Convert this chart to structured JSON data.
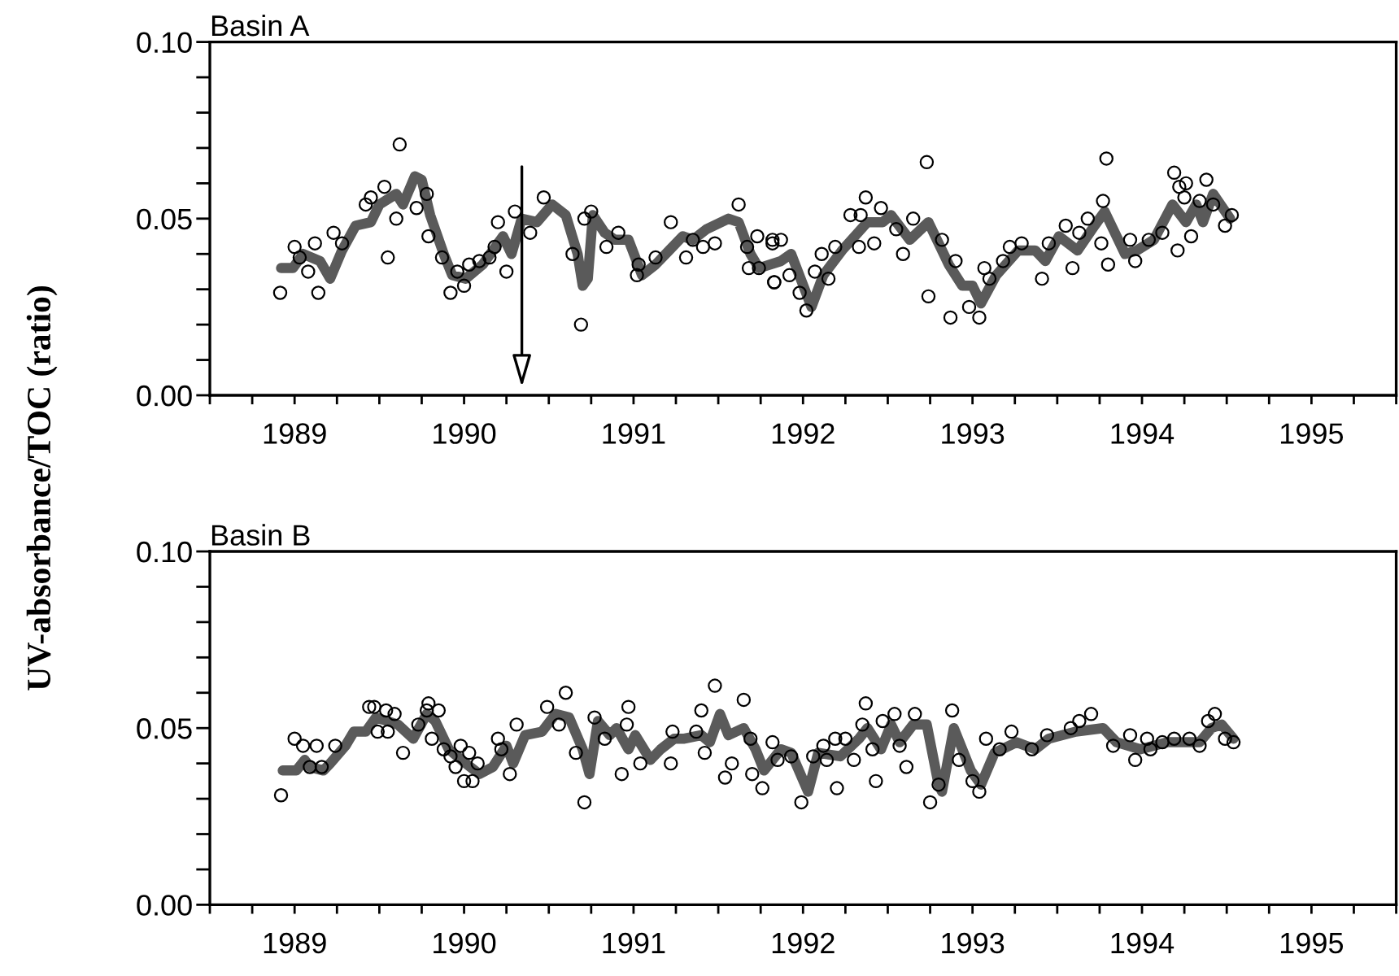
{
  "chart_data": [
    {
      "type": "scatter",
      "title": "Basin A",
      "ylabel": "UV-absorbance/TOC (ratio)",
      "xlim": [
        1989,
        1996
      ],
      "ylim": [
        0,
        0.1
      ],
      "xticks": [
        {
          "value": 1989,
          "label": null
        },
        {
          "value": 1989.25,
          "label": null
        },
        {
          "value": 1989.5,
          "label": "1989"
        },
        {
          "value": 1989.75,
          "label": null
        },
        {
          "value": 1990,
          "label": null
        },
        {
          "value": 1990.25,
          "label": null
        },
        {
          "value": 1990.5,
          "label": "1990"
        },
        {
          "value": 1990.75,
          "label": null
        },
        {
          "value": 1991,
          "label": null
        },
        {
          "value": 1991.25,
          "label": null
        },
        {
          "value": 1991.5,
          "label": "1991"
        },
        {
          "value": 1991.75,
          "label": null
        },
        {
          "value": 1992,
          "label": null
        },
        {
          "value": 1992.25,
          "label": null
        },
        {
          "value": 1992.5,
          "label": "1992"
        },
        {
          "value": 1992.75,
          "label": null
        },
        {
          "value": 1993,
          "label": null
        },
        {
          "value": 1993.25,
          "label": null
        },
        {
          "value": 1993.5,
          "label": "1993"
        },
        {
          "value": 1993.75,
          "label": null
        },
        {
          "value": 1994,
          "label": null
        },
        {
          "value": 1994.25,
          "label": null
        },
        {
          "value": 1994.5,
          "label": "1994"
        },
        {
          "value": 1994.75,
          "label": null
        },
        {
          "value": 1995,
          "label": null
        },
        {
          "value": 1995.25,
          "label": null
        },
        {
          "value": 1995.5,
          "label": "1995"
        },
        {
          "value": 1995.75,
          "label": null
        },
        {
          "value": 1996,
          "label": null
        }
      ],
      "yticks": [
        {
          "value": 0,
          "label": "0.00"
        },
        {
          "value": 0.01,
          "label": null
        },
        {
          "value": 0.02,
          "label": null
        },
        {
          "value": 0.03,
          "label": null
        },
        {
          "value": 0.04,
          "label": null
        },
        {
          "value": 0.05,
          "label": "0.05"
        },
        {
          "value": 0.06,
          "label": null
        },
        {
          "value": 0.07,
          "label": null
        },
        {
          "value": 0.08,
          "label": null
        },
        {
          "value": 0.09,
          "label": null
        },
        {
          "value": 0.1,
          "label": "0.10"
        }
      ],
      "grid": false,
      "legend": false,
      "series": [
        {
          "type": "scatter",
          "marker": "circle",
          "color": "#000000",
          "x": [
            1989.415,
            1989.5,
            1989.53,
            1989.58,
            1989.62,
            1989.64,
            1989.73,
            1989.78,
            1989.92,
            1989.95,
            1990.03,
            1990.05,
            1990.1,
            1990.12,
            1990.22,
            1990.28,
            1990.29,
            1990.37,
            1990.42,
            1990.46,
            1990.5,
            1990.53,
            1990.59,
            1990.65,
            1990.68,
            1990.7,
            1990.75,
            1990.8,
            1990.89,
            1990.97,
            1991.14,
            1991.19,
            1991.21,
            1991.25,
            1991.34,
            1991.41,
            1991.52,
            1991.53,
            1991.63,
            1991.72,
            1991.81,
            1991.85,
            1991.91,
            1991.98,
            1992.12,
            1992.17,
            1992.23,
            1992.18,
            1992.32,
            1992.33,
            1992.24,
            1992.32,
            1992.37,
            1992.33,
            1992.42,
            1992.48,
            1992.52,
            1992.57,
            1992.61,
            1992.65,
            1992.69,
            1992.78,
            1992.83,
            1992.84,
            1992.87,
            1992.92,
            1992.96,
            1993.05,
            1993.09,
            1993.15,
            1993.23,
            1993.24,
            1993.32,
            1993.37,
            1993.4,
            1993.48,
            1993.54,
            1993.57,
            1993.6,
            1993.68,
            1993.72,
            1993.79,
            1993.91,
            1993.95,
            1994.05,
            1994.09,
            1994.13,
            1994.18,
            1994.26,
            1994.27,
            1994.29,
            1994.3,
            1994.43,
            1994.46,
            1994.54,
            1994.62,
            1994.69,
            1994.71,
            1994.72,
            1994.76,
            1994.75,
            1994.79,
            1994.84,
            1994.88,
            1994.92,
            1994.99,
            1995.03
          ],
          "values": [
            0.029,
            0.042,
            0.039,
            0.035,
            0.043,
            0.029,
            0.046,
            0.043,
            0.054,
            0.056,
            0.059,
            0.039,
            0.05,
            0.071,
            0.053,
            0.057,
            0.045,
            0.039,
            0.029,
            0.035,
            0.031,
            0.037,
            0.038,
            0.039,
            0.042,
            0.049,
            0.035,
            0.052,
            0.046,
            0.056,
            0.04,
            0.02,
            0.05,
            0.052,
            0.042,
            0.046,
            0.034,
            0.037,
            0.039,
            0.049,
            0.039,
            0.044,
            0.042,
            0.043,
            0.054,
            0.042,
            0.045,
            0.036,
            0.044,
            0.032,
            0.036,
            0.043,
            0.044,
            0.032,
            0.034,
            0.029,
            0.024,
            0.035,
            0.04,
            0.033,
            0.042,
            0.051,
            0.042,
            0.051,
            0.056,
            0.043,
            0.053,
            0.047,
            0.04,
            0.05,
            0.066,
            0.028,
            0.044,
            0.022,
            0.038,
            0.025,
            0.022,
            0.036,
            0.033,
            0.038,
            0.042,
            0.043,
            0.033,
            0.043,
            0.048,
            0.036,
            0.046,
            0.05,
            0.043,
            0.055,
            0.067,
            0.037,
            0.044,
            0.038,
            0.044,
            0.046,
            0.063,
            0.041,
            0.059,
            0.06,
            0.056,
            0.045,
            0.055,
            0.061,
            0.054,
            0.048,
            0.051
          ]
        },
        {
          "type": "line",
          "marker": "none",
          "line_style": "solid",
          "color": "#5a5a5a",
          "x": [
            1989.42,
            1989.49,
            1989.55,
            1989.65,
            1989.71,
            1989.78,
            1989.86,
            1989.95,
            1990.0,
            1990.1,
            1990.14,
            1990.21,
            1990.25,
            1990.3,
            1990.38,
            1990.43,
            1990.51,
            1990.61,
            1990.73,
            1990.78,
            1990.84,
            1990.93,
            1991.02,
            1991.1,
            1991.17,
            1991.2,
            1991.23,
            1991.26,
            1991.33,
            1991.39,
            1991.47,
            1991.55,
            1991.63,
            1991.71,
            1991.79,
            1991.85,
            1991.93,
            1992.06,
            1992.12,
            1992.19,
            1992.24,
            1992.37,
            1992.43,
            1992.55,
            1992.62,
            1992.73,
            1992.88,
            1992.97,
            1993.02,
            1993.13,
            1993.24,
            1993.31,
            1993.36,
            1993.44,
            1993.5,
            1993.55,
            1993.64,
            1993.77,
            1993.87,
            1993.93,
            1994.01,
            1994.12,
            1994.22,
            1994.28,
            1994.4,
            1994.47,
            1994.57,
            1994.68,
            1994.76,
            1994.82,
            1994.86,
            1994.92,
            1995.02
          ],
          "values": [
            0.036,
            0.036,
            0.04,
            0.038,
            0.033,
            0.041,
            0.048,
            0.049,
            0.054,
            0.057,
            0.054,
            0.062,
            0.061,
            0.051,
            0.04,
            0.034,
            0.033,
            0.037,
            0.045,
            0.04,
            0.05,
            0.049,
            0.054,
            0.051,
            0.04,
            0.031,
            0.033,
            0.051,
            0.046,
            0.044,
            0.044,
            0.034,
            0.037,
            0.041,
            0.045,
            0.044,
            0.047,
            0.05,
            0.049,
            0.04,
            0.036,
            0.038,
            0.04,
            0.025,
            0.034,
            0.041,
            0.049,
            0.049,
            0.051,
            0.044,
            0.049,
            0.042,
            0.037,
            0.031,
            0.031,
            0.026,
            0.034,
            0.041,
            0.041,
            0.038,
            0.045,
            0.041,
            0.048,
            0.052,
            0.04,
            0.041,
            0.044,
            0.054,
            0.049,
            0.054,
            0.049,
            0.057,
            0.05
          ]
        }
      ]
    },
    {
      "type": "scatter",
      "title": "Basin B",
      "xlim": [
        1989,
        1996
      ],
      "ylim": [
        0,
        0.1
      ],
      "xticks": [
        {
          "value": 1989,
          "label": null
        },
        {
          "value": 1989.25,
          "label": null
        },
        {
          "value": 1989.5,
          "label": "1989"
        },
        {
          "value": 1989.75,
          "label": null
        },
        {
          "value": 1990,
          "label": null
        },
        {
          "value": 1990.25,
          "label": null
        },
        {
          "value": 1990.5,
          "label": "1990"
        },
        {
          "value": 1990.75,
          "label": null
        },
        {
          "value": 1991,
          "label": null
        },
        {
          "value": 1991.25,
          "label": null
        },
        {
          "value": 1991.5,
          "label": "1991"
        },
        {
          "value": 1991.75,
          "label": null
        },
        {
          "value": 1992,
          "label": null
        },
        {
          "value": 1992.25,
          "label": null
        },
        {
          "value": 1992.5,
          "label": "1992"
        },
        {
          "value": 1992.75,
          "label": null
        },
        {
          "value": 1993,
          "label": null
        },
        {
          "value": 1993.25,
          "label": null
        },
        {
          "value": 1993.5,
          "label": "1993"
        },
        {
          "value": 1993.75,
          "label": null
        },
        {
          "value": 1994,
          "label": null
        },
        {
          "value": 1994.25,
          "label": null
        },
        {
          "value": 1994.5,
          "label": "1994"
        },
        {
          "value": 1994.75,
          "label": null
        },
        {
          "value": 1995,
          "label": null
        },
        {
          "value": 1995.25,
          "label": null
        },
        {
          "value": 1995.5,
          "label": "1995"
        },
        {
          "value": 1995.75,
          "label": null
        },
        {
          "value": 1996,
          "label": null
        }
      ],
      "yticks": [
        {
          "value": 0,
          "label": "0.00"
        },
        {
          "value": 0.01,
          "label": null
        },
        {
          "value": 0.02,
          "label": null
        },
        {
          "value": 0.03,
          "label": null
        },
        {
          "value": 0.04,
          "label": null
        },
        {
          "value": 0.05,
          "label": "0.05"
        },
        {
          "value": 0.06,
          "label": null
        },
        {
          "value": 0.07,
          "label": null
        },
        {
          "value": 0.08,
          "label": null
        },
        {
          "value": 0.09,
          "label": null
        },
        {
          "value": 0.1,
          "label": "0.10"
        }
      ],
      "grid": false,
      "legend": false,
      "series": [
        {
          "type": "scatter",
          "marker": "circle",
          "color": "#000000",
          "x": [
            1989.42,
            1989.5,
            1989.55,
            1989.59,
            1989.63,
            1989.66,
            1989.74,
            1989.94,
            1989.97,
            1989.99,
            1990.04,
            1990.05,
            1990.09,
            1990.14,
            1990.23,
            1990.28,
            1990.29,
            1990.31,
            1990.35,
            1990.38,
            1990.42,
            1990.45,
            1990.48,
            1990.5,
            1990.53,
            1990.55,
            1990.58,
            1990.7,
            1990.72,
            1990.77,
            1990.81,
            1990.99,
            1991.06,
            1991.1,
            1991.16,
            1991.21,
            1991.27,
            1991.33,
            1991.43,
            1991.46,
            1991.47,
            1991.54,
            1991.72,
            1991.73,
            1991.87,
            1991.9,
            1991.92,
            1991.98,
            1992.04,
            1992.08,
            1992.15,
            1992.19,
            1992.2,
            1992.26,
            1992.32,
            1992.35,
            1992.43,
            1992.49,
            1992.56,
            1992.62,
            1992.64,
            1992.69,
            1992.7,
            1992.75,
            1992.8,
            1992.85,
            1992.87,
            1992.93,
            1992.91,
            1992.97,
            1993.04,
            1993.07,
            1993.11,
            1993.16,
            1993.25,
            1993.3,
            1993.38,
            1993.42,
            1993.5,
            1993.54,
            1993.58,
            1993.66,
            1993.73,
            1993.85,
            1993.94,
            1994.08,
            1994.13,
            1994.2,
            1994.33,
            1994.43,
            1994.46,
            1994.53,
            1994.55,
            1994.62,
            1994.69,
            1994.78,
            1994.84,
            1994.89,
            1994.93,
            1994.99,
            1995.04
          ],
          "values": [
            0.031,
            0.047,
            0.045,
            0.039,
            0.045,
            0.039,
            0.045,
            0.056,
            0.056,
            0.049,
            0.055,
            0.049,
            0.054,
            0.043,
            0.051,
            0.055,
            0.057,
            0.047,
            0.055,
            0.044,
            0.042,
            0.039,
            0.045,
            0.035,
            0.043,
            0.035,
            0.04,
            0.047,
            0.044,
            0.037,
            0.051,
            0.056,
            0.051,
            0.06,
            0.043,
            0.029,
            0.053,
            0.047,
            0.037,
            0.051,
            0.056,
            0.04,
            0.04,
            0.049,
            0.049,
            0.055,
            0.043,
            0.062,
            0.036,
            0.04,
            0.058,
            0.047,
            0.037,
            0.033,
            0.046,
            0.041,
            0.042,
            0.029,
            0.042,
            0.045,
            0.041,
            0.047,
            0.033,
            0.047,
            0.041,
            0.051,
            0.057,
            0.035,
            0.044,
            0.052,
            0.054,
            0.045,
            0.039,
            0.054,
            0.029,
            0.034,
            0.055,
            0.041,
            0.035,
            0.032,
            0.047,
            0.044,
            0.049,
            0.044,
            0.048,
            0.05,
            0.052,
            0.054,
            0.045,
            0.048,
            0.041,
            0.047,
            0.044,
            0.046,
            0.047,
            0.047,
            0.045,
            0.052,
            0.054,
            0.047,
            0.046
          ]
        },
        {
          "type": "line",
          "marker": "none",
          "line_style": "solid",
          "color": "#5a5a5a",
          "x": [
            1989.43,
            1989.51,
            1989.56,
            1989.59,
            1989.67,
            1989.71,
            1989.8,
            1989.85,
            1989.92,
            1989.98,
            1990.11,
            1990.2,
            1990.28,
            1990.33,
            1990.41,
            1990.51,
            1990.59,
            1990.67,
            1990.75,
            1990.79,
            1990.86,
            1990.96,
            1991.04,
            1991.12,
            1991.2,
            1991.24,
            1991.29,
            1991.36,
            1991.4,
            1991.47,
            1991.51,
            1991.6,
            1991.66,
            1991.74,
            1991.8,
            1991.9,
            1991.95,
            1992.01,
            1992.06,
            1992.15,
            1992.22,
            1992.27,
            1992.37,
            1992.43,
            1992.53,
            1992.59,
            1992.72,
            1992.83,
            1992.88,
            1992.96,
            1993.02,
            1993.07,
            1993.15,
            1993.23,
            1993.3,
            1993.32,
            1993.39,
            1993.49,
            1993.55,
            1993.63,
            1993.76,
            1993.87,
            1993.95,
            1994.11,
            1994.27,
            1994.35,
            1994.49,
            1994.65,
            1994.84,
            1994.91,
            1994.97,
            1995.04
          ],
          "values": [
            0.038,
            0.038,
            0.041,
            0.039,
            0.038,
            0.04,
            0.045,
            0.049,
            0.049,
            0.053,
            0.051,
            0.047,
            0.054,
            0.052,
            0.044,
            0.04,
            0.037,
            0.039,
            0.045,
            0.04,
            0.048,
            0.049,
            0.054,
            0.053,
            0.044,
            0.037,
            0.052,
            0.048,
            0.05,
            0.044,
            0.048,
            0.041,
            0.044,
            0.047,
            0.047,
            0.048,
            0.046,
            0.054,
            0.048,
            0.05,
            0.044,
            0.038,
            0.044,
            0.043,
            0.032,
            0.043,
            0.042,
            0.047,
            0.05,
            0.044,
            0.051,
            0.046,
            0.051,
            0.051,
            0.034,
            0.032,
            0.05,
            0.038,
            0.034,
            0.043,
            0.046,
            0.044,
            0.047,
            0.049,
            0.05,
            0.046,
            0.044,
            0.046,
            0.046,
            0.05,
            0.051,
            0.047
          ]
        }
      ]
    }
  ]
}
